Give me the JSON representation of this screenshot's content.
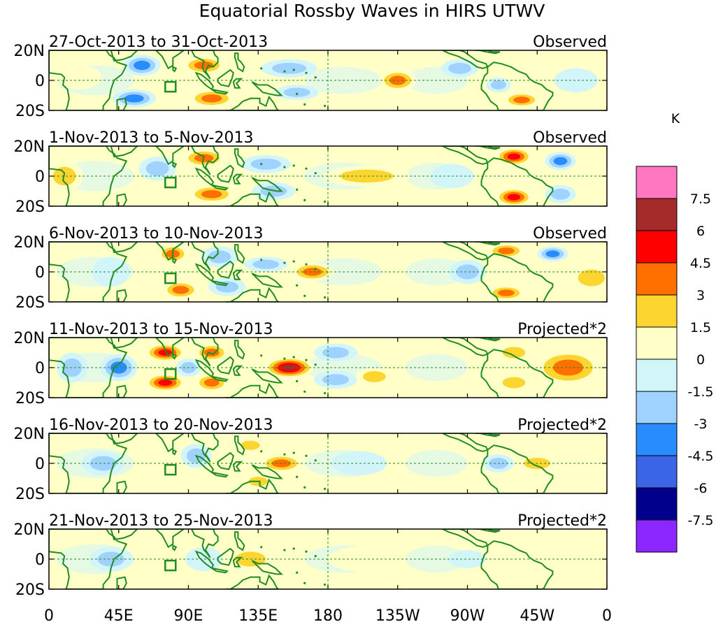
{
  "chart_data": {
    "type": "heatmap",
    "title": "Equatorial Rossby Waves in HIRS UTWV",
    "x_tick_labels": [
      "0",
      "45E",
      "90E",
      "135E",
      "180",
      "135W",
      "90W",
      "45W",
      "0"
    ],
    "y_tick_labels": [
      "20N",
      "0",
      "20S"
    ],
    "xlim_deg_east": [
      0,
      360
    ],
    "ylim_deg_lat": [
      -20,
      20
    ],
    "colorbar": {
      "units": "K",
      "levels": [
        "7.5",
        "6",
        "4.5",
        "3",
        "1.5",
        "0",
        "-1.5",
        "-3",
        "-4.5",
        "-6",
        "-7.5"
      ],
      "colors": [
        "#ff77c0",
        "#a52a2a",
        "#ff0000",
        "#ff7000",
        "#fdd531",
        "#ffffc8",
        "#d2f5fa",
        "#a0d2ff",
        "#288cff",
        "#3c64e6",
        "#00008c",
        "#8c28ff"
      ]
    },
    "panels": [
      {
        "date_range": "27-Oct-2013 to 31-Oct-2013",
        "status": "Observed",
        "features": [
          {
            "lon": 60,
            "lat": 10,
            "value": -4.5,
            "rlon": 12,
            "rlat": 7
          },
          {
            "lon": 100,
            "lat": 10,
            "value": 3.5,
            "rlon": 14,
            "rlat": 6
          },
          {
            "lon": 55,
            "lat": -12,
            "value": -4,
            "rlon": 14,
            "rlat": 6
          },
          {
            "lon": 105,
            "lat": -12,
            "value": 4,
            "rlon": 15,
            "rlat": 6
          },
          {
            "lon": 155,
            "lat": 8,
            "value": -2,
            "rlon": 18,
            "rlat": 6
          },
          {
            "lon": 225,
            "lat": 0,
            "value": 4.5,
            "rlon": 12,
            "rlat": 7
          },
          {
            "lon": 160,
            "lat": -8,
            "value": -2.5,
            "rlon": 14,
            "rlat": 5
          },
          {
            "lon": 265,
            "lat": 8,
            "value": -3,
            "rlon": 12,
            "rlat": 6
          },
          {
            "lon": 305,
            "lat": -13,
            "value": 4,
            "rlon": 12,
            "rlat": 5
          },
          {
            "lon": 312,
            "lat": 3,
            "value": 1.5,
            "rlon": 18,
            "rlat": 6
          },
          {
            "lon": 340,
            "lat": 0,
            "value": -1.5,
            "rlon": 14,
            "rlat": 8
          },
          {
            "lon": 20,
            "lat": 2,
            "value": 1.2,
            "rlon": 14,
            "rlat": 8
          },
          {
            "lon": 290,
            "lat": -3,
            "value": -2.5,
            "rlon": 8,
            "rlat": 5
          }
        ]
      },
      {
        "date_range": "1-Nov-2013 to 5-Nov-2013",
        "status": "Observed",
        "features": [
          {
            "lon": 100,
            "lat": 12,
            "value": 4,
            "rlon": 14,
            "rlat": 6
          },
          {
            "lon": 105,
            "lat": -12,
            "value": 4,
            "rlon": 15,
            "rlat": 6
          },
          {
            "lon": 70,
            "lat": 5,
            "value": -2.5,
            "rlon": 12,
            "rlat": 8
          },
          {
            "lon": 140,
            "lat": 8,
            "value": -2.5,
            "rlon": 16,
            "rlat": 6
          },
          {
            "lon": 145,
            "lat": -10,
            "value": -2,
            "rlon": 14,
            "rlat": 6
          },
          {
            "lon": 205,
            "lat": 0,
            "value": 2,
            "rlon": 28,
            "rlat": 7
          },
          {
            "lon": 300,
            "lat": 13,
            "value": 5,
            "rlon": 12,
            "rlat": 6
          },
          {
            "lon": 300,
            "lat": -14,
            "value": 5,
            "rlon": 12,
            "rlat": 6
          },
          {
            "lon": 330,
            "lat": 10,
            "value": -4,
            "rlon": 10,
            "rlat": 6
          },
          {
            "lon": 330,
            "lat": -12,
            "value": -3,
            "rlon": 10,
            "rlat": 6
          },
          {
            "lon": 10,
            "lat": 0,
            "value": 2,
            "rlon": 12,
            "rlat": 10
          },
          {
            "lon": 260,
            "lat": 0,
            "value": -1.5,
            "rlon": 14,
            "rlat": 8
          }
        ]
      },
      {
        "date_range": "6-Nov-2013 to 10-Nov-2013",
        "status": "Observed",
        "features": [
          {
            "lon": 80,
            "lat": 12,
            "value": 3.5,
            "rlon": 10,
            "rlat": 6
          },
          {
            "lon": 85,
            "lat": -12,
            "value": 4,
            "rlon": 12,
            "rlat": 6
          },
          {
            "lon": 110,
            "lat": 10,
            "value": -3,
            "rlon": 12,
            "rlat": 7
          },
          {
            "lon": 115,
            "lat": -10,
            "value": -3,
            "rlon": 12,
            "rlat": 6
          },
          {
            "lon": 170,
            "lat": 0,
            "value": 3.5,
            "rlon": 14,
            "rlat": 6
          },
          {
            "lon": 140,
            "lat": 5,
            "value": -1.8,
            "rlon": 14,
            "rlat": 5
          },
          {
            "lon": 295,
            "lat": 14,
            "value": 3.5,
            "rlon": 12,
            "rlat": 5
          },
          {
            "lon": 295,
            "lat": -14,
            "value": 3.5,
            "rlon": 12,
            "rlat": 5
          },
          {
            "lon": 325,
            "lat": 12,
            "value": -4,
            "rlon": 10,
            "rlat": 5
          },
          {
            "lon": 350,
            "lat": -4,
            "value": 2.5,
            "rlon": 14,
            "rlat": 9
          },
          {
            "lon": 270,
            "lat": 0,
            "value": -2,
            "rlon": 12,
            "rlat": 8
          },
          {
            "lon": 40,
            "lat": 0,
            "value": -1.5,
            "rlon": 12,
            "rlat": 10
          }
        ]
      },
      {
        "date_range": "11-Nov-2013 to 15-Nov-2013",
        "status": "Projected*2",
        "features": [
          {
            "lon": 75,
            "lat": 10,
            "value": 5.5,
            "rlon": 13,
            "rlat": 6
          },
          {
            "lon": 75,
            "lat": -10,
            "value": 5.5,
            "rlon": 13,
            "rlat": 6
          },
          {
            "lon": 105,
            "lat": 10,
            "value": 4.5,
            "rlon": 11,
            "rlat": 6
          },
          {
            "lon": 105,
            "lat": -10,
            "value": 4,
            "rlon": 11,
            "rlat": 6
          },
          {
            "lon": 45,
            "lat": 0,
            "value": -4,
            "rlon": 12,
            "rlat": 9
          },
          {
            "lon": 90,
            "lat": 0,
            "value": -3,
            "rlon": 8,
            "rlat": 6
          },
          {
            "lon": 155,
            "lat": 0,
            "value": 6.5,
            "rlon": 16,
            "rlat": 7
          },
          {
            "lon": 185,
            "lat": 10,
            "value": -2.5,
            "rlon": 14,
            "rlat": 6
          },
          {
            "lon": 185,
            "lat": -8,
            "value": -2,
            "rlon": 14,
            "rlat": 6
          },
          {
            "lon": 210,
            "lat": -6,
            "value": 3,
            "rlon": 12,
            "rlat": 6
          },
          {
            "lon": 335,
            "lat": 0,
            "value": 4,
            "rlon": 22,
            "rlat": 12
          },
          {
            "lon": 300,
            "lat": 10,
            "value": 2,
            "rlon": 12,
            "rlat": 6
          },
          {
            "lon": 300,
            "lat": -10,
            "value": 2,
            "rlon": 12,
            "rlat": 6
          },
          {
            "lon": 15,
            "lat": 0,
            "value": -2,
            "rlon": 10,
            "rlat": 10
          }
        ]
      },
      {
        "date_range": "16-Nov-2013 to 20-Nov-2013",
        "status": "Projected*2",
        "features": [
          {
            "lon": 150,
            "lat": 0,
            "value": 3.5,
            "rlon": 14,
            "rlat": 6
          },
          {
            "lon": 135,
            "lat": -12,
            "value": 2,
            "rlon": 10,
            "rlat": 5
          },
          {
            "lon": 130,
            "lat": 12,
            "value": 2,
            "rlon": 10,
            "rlat": 5
          },
          {
            "lon": 95,
            "lat": 5,
            "value": -2,
            "rlon": 10,
            "rlat": 8
          },
          {
            "lon": 35,
            "lat": 0,
            "value": -2,
            "rlon": 14,
            "rlat": 8
          },
          {
            "lon": 70,
            "lat": -5,
            "value": 1.5,
            "rlon": 12,
            "rlat": 8
          },
          {
            "lon": 315,
            "lat": 0,
            "value": 2,
            "rlon": 14,
            "rlat": 6
          },
          {
            "lon": 290,
            "lat": 0,
            "value": -1.6,
            "rlon": 10,
            "rlat": 6
          },
          {
            "lon": 200,
            "lat": 0,
            "value": -1,
            "rlon": 18,
            "rlat": 8
          }
        ]
      },
      {
        "date_range": "21-Nov-2013 to 25-Nov-2013",
        "status": "Projected*2",
        "features": [
          {
            "lon": 130,
            "lat": 0,
            "value": 1.6,
            "rlon": 16,
            "rlat": 8
          },
          {
            "lon": 100,
            "lat": 0,
            "value": -1.2,
            "rlon": 12,
            "rlat": 8
          },
          {
            "lon": 40,
            "lat": 0,
            "value": -1.6,
            "rlon": 14,
            "rlat": 8
          },
          {
            "lon": 75,
            "lat": 0,
            "value": 1.2,
            "rlon": 12,
            "rlat": 8
          },
          {
            "lon": 300,
            "lat": 0,
            "value": 1.2,
            "rlon": 14,
            "rlat": 6
          },
          {
            "lon": 270,
            "lat": 0,
            "value": -1.2,
            "rlon": 12,
            "rlat": 6
          },
          {
            "lon": 200,
            "lat": 0,
            "value": 1,
            "rlon": 20,
            "rlat": 8
          }
        ]
      }
    ]
  }
}
